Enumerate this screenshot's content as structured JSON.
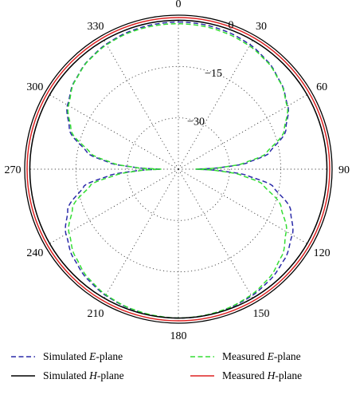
{
  "chart_data": {
    "type": "polar",
    "title": "",
    "angle_unit": "degrees",
    "angle_zero": "top",
    "angle_direction": "clockwise",
    "angle_ticks": [
      0,
      30,
      60,
      90,
      120,
      150,
      180,
      210,
      240,
      270,
      300,
      330
    ],
    "angle_tick_labels": [
      "0",
      "30",
      "60",
      "90",
      "120",
      "150",
      "180",
      "210",
      "240",
      "270",
      "300",
      "330"
    ],
    "radial_range_db": [
      -45,
      0
    ],
    "radial_ticks": [
      0,
      -15,
      -30
    ],
    "radial_tick_labels": [
      "0",
      "−15",
      "−30"
    ],
    "radial_label_angle": 20,
    "grid": "dotted",
    "legend_position": "bottom",
    "series": [
      {
        "name": "Simulated E-plane",
        "legend_prefix": "Simulated ",
        "legend_italic": "E",
        "legend_suffix": "-plane",
        "color": "#2a2aa8",
        "dash": "dashed",
        "angles": [
          0,
          10,
          20,
          30,
          40,
          50,
          60,
          70,
          80,
          85,
          88,
          90,
          92,
          95,
          100,
          110,
          120,
          130,
          140,
          150,
          160,
          170,
          180,
          190,
          200,
          210,
          220,
          230,
          240,
          250,
          260,
          265,
          268,
          270,
          272,
          275,
          280,
          290,
          300,
          310,
          320,
          330,
          340,
          350,
          360
        ],
        "values_db": [
          -2,
          -2.1,
          -2.4,
          -3,
          -4.1,
          -5.8,
          -8,
          -11.5,
          -18,
          -25,
          -33,
          -40,
          -33,
          -25,
          -17,
          -10,
          -6.5,
          -4.3,
          -3,
          -2.2,
          -1.8,
          -1.5,
          -1.5,
          -1.6,
          -1.9,
          -2.4,
          -3.3,
          -4.8,
          -7,
          -10.5,
          -17,
          -25,
          -33,
          -40,
          -33,
          -25,
          -18,
          -11,
          -7.5,
          -5.2,
          -3.7,
          -2.8,
          -2.3,
          -2.1,
          -2
        ]
      },
      {
        "name": "Measured E-plane",
        "legend_prefix": "Measured ",
        "legend_italic": "E",
        "legend_suffix": "-plane",
        "color": "#33dd33",
        "dash": "dashed",
        "angles": [
          0,
          10,
          20,
          30,
          40,
          50,
          60,
          70,
          80,
          85,
          88,
          90,
          92,
          95,
          100,
          110,
          120,
          130,
          140,
          150,
          160,
          170,
          180,
          190,
          200,
          210,
          220,
          230,
          240,
          250,
          260,
          265,
          268,
          270,
          272,
          275,
          280,
          290,
          300,
          310,
          320,
          330,
          340,
          350,
          360
        ],
        "values_db": [
          -2.5,
          -2.6,
          -2.9,
          -3.4,
          -4.3,
          -5.9,
          -8.2,
          -12,
          -19,
          -26,
          -33,
          -40,
          -34,
          -27,
          -20,
          -13,
          -8.5,
          -5.5,
          -3.6,
          -2.5,
          -1.9,
          -1.6,
          -1.5,
          -1.7,
          -2,
          -2.6,
          -3.7,
          -5.5,
          -8,
          -12,
          -19,
          -27,
          -34,
          -40,
          -33,
          -26,
          -19,
          -11.5,
          -7.8,
          -5.3,
          -3.8,
          -3,
          -2.6,
          -2.5,
          -2.5
        ]
      },
      {
        "name": "Simulated H-plane",
        "legend_prefix": "Simulated ",
        "legend_italic": "H",
        "legend_suffix": "-plane",
        "color": "#000000",
        "dash": "solid",
        "angles": [
          0,
          90,
          180,
          270,
          360
        ],
        "values_db": [
          -1.5,
          -1.5,
          -1.5,
          -1.5,
          -1.5
        ]
      },
      {
        "name": "Measured H-plane",
        "legend_prefix": "Measured ",
        "legend_italic": "H",
        "legend_suffix": "-plane",
        "color": "#dd2222",
        "dash": "solid",
        "angles": [
          0,
          90,
          180,
          270,
          360
        ],
        "values_db": [
          -0.7,
          -0.7,
          -0.7,
          -0.7,
          -0.7
        ]
      }
    ]
  }
}
